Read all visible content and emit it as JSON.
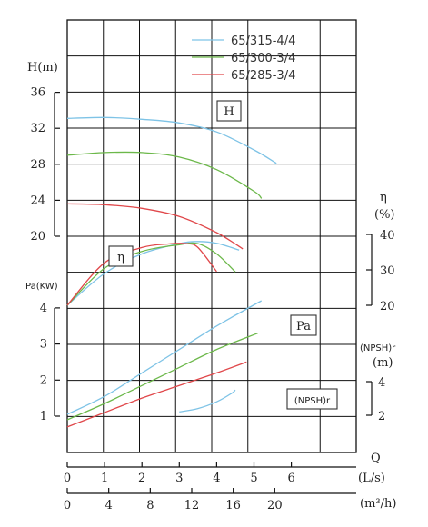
{
  "chart_data": {
    "type": "line",
    "title": "",
    "grid": true,
    "legend_position": "top-right",
    "x_axis_primary": {
      "label": "Q",
      "unit": "(L/s)",
      "range": [
        0,
        6
      ],
      "ticks": [
        "0",
        "1",
        "2",
        "3",
        "4",
        "5",
        "6"
      ]
    },
    "x_axis_secondary": {
      "unit": "(m³/h)",
      "range": [
        0,
        21.6
      ],
      "ticks": [
        "0",
        "4",
        "8",
        "12",
        "16",
        "20"
      ]
    },
    "y_axes": {
      "head": {
        "label": "H(m)",
        "range": [
          20,
          36
        ],
        "ticks": [
          "20",
          "24",
          "28",
          "32",
          "36"
        ]
      },
      "efficiency": {
        "label": "η",
        "unit": "(%)",
        "range": [
          20,
          40
        ],
        "ticks": [
          "20",
          "30",
          "40"
        ]
      },
      "power": {
        "label": "Pa(KW)",
        "range": [
          1,
          4
        ],
        "ticks": [
          "1",
          "2",
          "3",
          "4"
        ]
      },
      "npsh": {
        "label": "(NPSH)r",
        "unit": "(m)",
        "range": [
          2,
          4
        ],
        "ticks": [
          "2",
          "4"
        ]
      }
    },
    "curve_labels": [
      "H",
      "η",
      "Pa",
      "(NPSH)r"
    ],
    "colors": {
      "65/315-4/4": "#7ec3e6",
      "65/300-3/4": "#6cb84a",
      "65/285-3/4": "#e0474a",
      "grid": "#111111"
    },
    "series": [
      {
        "name": "65/315-4/4",
        "head": {
          "x": [
            0,
            1,
            2,
            3,
            4,
            5,
            5.6
          ],
          "y": [
            33.1,
            33.2,
            33.0,
            32.6,
            31.6,
            29.6,
            28.1
          ]
        },
        "efficiency": {
          "x": [
            0,
            1,
            2,
            3,
            3.5,
            4.0,
            4.6
          ],
          "y": [
            20,
            29,
            34.5,
            37.4,
            38.0,
            37.5,
            35.6
          ]
        },
        "power": {
          "x": [
            0,
            1,
            2,
            3,
            4,
            5.2
          ],
          "y": [
            1.05,
            1.55,
            2.2,
            2.85,
            3.5,
            4.2
          ]
        },
        "npsh": {
          "x": [
            3.0,
            3.5,
            4.0,
            4.4,
            4.5
          ],
          "y": [
            2.2,
            2.4,
            2.8,
            3.3,
            3.5
          ]
        }
      },
      {
        "name": "65/300-3/4",
        "head": {
          "x": [
            0,
            1,
            2,
            3,
            4,
            5,
            5.2
          ],
          "y": [
            29.0,
            29.3,
            29.3,
            28.8,
            27.4,
            25.0,
            24.2
          ]
        },
        "efficiency": {
          "x": [
            0,
            1,
            2,
            3,
            3.5,
            4.0,
            4.5
          ],
          "y": [
            20,
            30.5,
            35.2,
            37.1,
            37.4,
            34.5,
            29.4
          ]
        },
        "power": {
          "x": [
            0,
            1,
            2,
            3,
            4,
            5.1
          ],
          "y": [
            0.9,
            1.35,
            1.85,
            2.35,
            2.85,
            3.3
          ]
        }
      },
      {
        "name": "65/285-3/4",
        "head": {
          "x": [
            0,
            1,
            2,
            3,
            4,
            4.7
          ],
          "y": [
            23.6,
            23.5,
            23.1,
            22.2,
            20.4,
            18.6
          ]
        },
        "efficiency": {
          "x": [
            0,
            1,
            2,
            2.7,
            3.2,
            3.5,
            4.0
          ],
          "y": [
            20,
            32,
            36.3,
            37.3,
            37.4,
            36.3,
            29.5
          ]
        },
        "power": {
          "x": [
            0,
            1,
            2,
            3,
            4,
            4.8
          ],
          "y": [
            0.7,
            1.1,
            1.5,
            1.85,
            2.2,
            2.5
          ]
        }
      }
    ]
  }
}
